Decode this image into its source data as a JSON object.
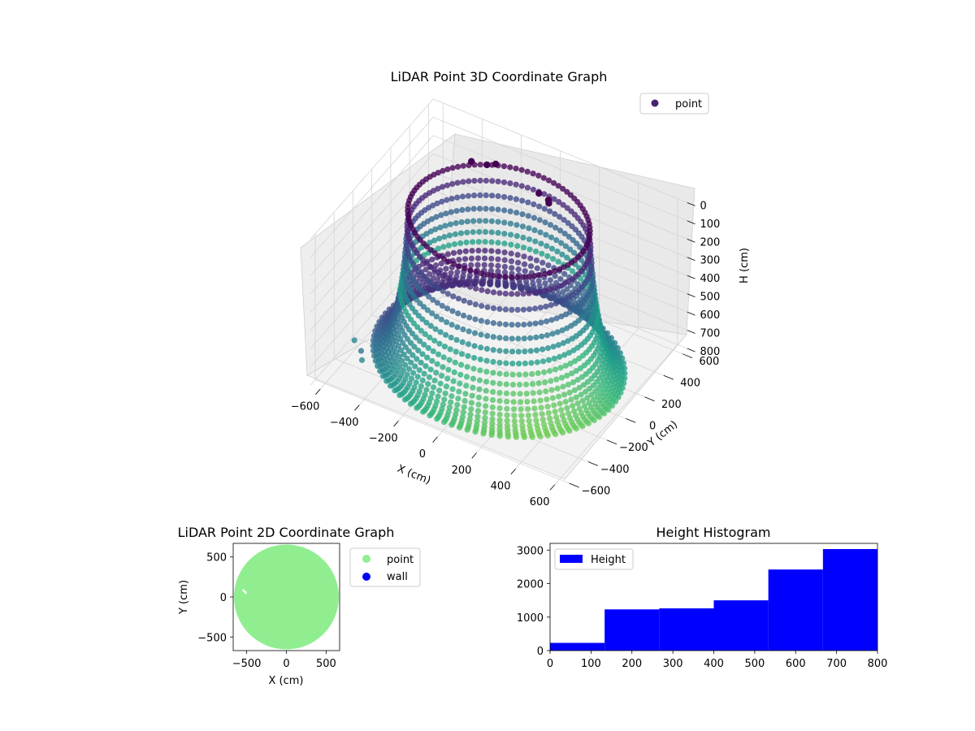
{
  "figure": {
    "background": "#ffffff"
  },
  "chart_data": [
    {
      "type": "scatter",
      "projection": "3d",
      "title": "LiDAR Point 3D Coordinate Graph",
      "xlabel": "X (cm)",
      "ylabel": "Y (cm)",
      "zlabel": "H (cm)",
      "xlim": [
        -650,
        650
      ],
      "ylim": [
        -650,
        650
      ],
      "zlim": [
        800,
        0
      ],
      "z_inverted": true,
      "x_ticks": [
        "−600",
        "−400",
        "−200",
        "0",
        "200",
        "400",
        "600"
      ],
      "y_ticks": [
        "−600",
        "−400",
        "−200",
        "0",
        "200",
        "400",
        "600"
      ],
      "z_ticks": [
        "0",
        "100",
        "200",
        "300",
        "400",
        "500",
        "600",
        "700",
        "800"
      ],
      "grid": true,
      "colormap": "viridis",
      "legend": {
        "entries": [
          "point"
        ],
        "placement": "top-right",
        "color": "#46256e"
      },
      "series": [
        {
          "name": "point",
          "description_shape": "bowl / dome of points: rim radius about 420 cm at height about 0 cm, descending to floor ring about 560-600 cm at height about 760 cm",
          "points": [
            {
              "x": -560,
              "y": -300,
              "h": 780
            },
            {
              "x": -430,
              "y": -560,
              "h": 620
            },
            {
              "x": -440,
              "y": -620,
              "h": 480
            }
          ]
        }
      ]
    },
    {
      "type": "scatter",
      "title": "LiDAR Point 2D Coordinate Graph",
      "xlabel": "X (cm)",
      "ylabel": "Y (cm)",
      "xlim": [
        -670,
        670
      ],
      "ylim": [
        -670,
        670
      ],
      "x_ticks": [
        "−500",
        "0",
        "500"
      ],
      "y_ticks": [
        "500",
        "0",
        "−500"
      ],
      "grid": false,
      "legend": {
        "entries": [
          {
            "name": "point",
            "color": "#90ee90"
          },
          {
            "name": "wall",
            "color": "#0000ff"
          }
        ],
        "placement": "outside-right"
      },
      "series": [
        {
          "name": "point",
          "color": "#90ee90",
          "shape": "filled disc",
          "radius": 660,
          "center": [
            0,
            0
          ]
        },
        {
          "name": "wall",
          "color": "#0000ff",
          "points": []
        }
      ]
    },
    {
      "type": "bar",
      "title": "Height Histogram",
      "xlabel": "",
      "ylabel": "",
      "xlim": [
        0,
        800
      ],
      "ylim": [
        0,
        3200
      ],
      "x_ticks": [
        "0",
        "100",
        "200",
        "300",
        "400",
        "500",
        "600",
        "700",
        "800"
      ],
      "y_ticks": [
        "0",
        "1000",
        "2000",
        "3000"
      ],
      "bin_edges": [
        0,
        133.3,
        266.7,
        400,
        533.3,
        666.7,
        800
      ],
      "legend": {
        "entries": [
          "Height"
        ],
        "placement": "upper-left"
      },
      "series": [
        {
          "name": "Height",
          "color": "#0000ff",
          "values": [
            230,
            1230,
            1260,
            1500,
            2420,
            3030
          ]
        }
      ]
    }
  ]
}
